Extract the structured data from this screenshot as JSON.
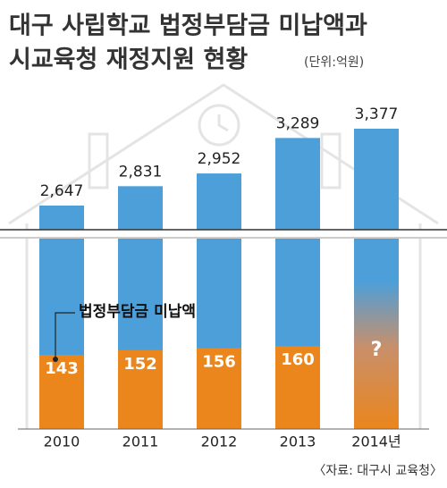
{
  "chart_data": {
    "type": "bar",
    "title": [
      "대구 사립학교 법정부담금 미납액과",
      "시교육청 재정지원 현황"
    ],
    "unit": "(단위:억원)",
    "categories": [
      "2010",
      "2011",
      "2012",
      "2013",
      "2014년"
    ],
    "series": [
      {
        "color": "#4d9fd9",
        "values": [
          2647,
          2831,
          2952,
          3289,
          3377
        ],
        "value_labels": [
          "2,647",
          "2,831",
          "2,952",
          "3,289",
          "3,377"
        ]
      },
      {
        "name": "법정부담금 미납액",
        "color": "#ea861c",
        "values": [
          143,
          152,
          156,
          160,
          null
        ],
        "value_labels": [
          "143",
          "152",
          "156",
          "160",
          "?"
        ]
      }
    ],
    "source": "〈자료: 대구시 교육청〉"
  }
}
